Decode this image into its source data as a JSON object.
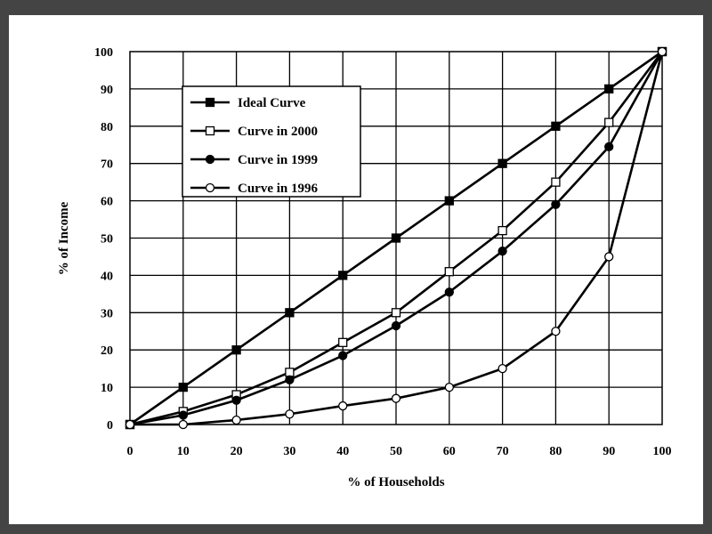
{
  "chart_data": {
    "type": "line",
    "title": "",
    "xlabel": "% of Households",
    "ylabel": "% of Income",
    "xlim": [
      0,
      100
    ],
    "ylim": [
      0,
      100
    ],
    "xticks": [
      0,
      10,
      20,
      30,
      40,
      50,
      60,
      70,
      80,
      90,
      100
    ],
    "yticks": [
      0,
      10,
      20,
      30,
      40,
      50,
      60,
      70,
      80,
      90,
      100
    ],
    "grid": true,
    "legend_position": "top-left",
    "x": [
      0,
      10,
      20,
      30,
      40,
      50,
      60,
      70,
      80,
      90,
      100
    ],
    "series": [
      {
        "name": "Ideal Curve",
        "marker": "filled-square",
        "values": [
          0,
          10,
          20,
          30,
          40,
          50,
          60,
          70,
          80,
          90,
          100
        ]
      },
      {
        "name": "Curve in 2000",
        "marker": "open-square",
        "values": [
          0,
          3.5,
          8,
          14,
          22,
          30,
          41,
          52,
          65,
          81,
          100
        ]
      },
      {
        "name": "Curve in 1999",
        "marker": "filled-circle",
        "values": [
          0,
          2.5,
          6.5,
          12,
          18.5,
          26.5,
          35.5,
          46.5,
          59,
          74.5,
          100
        ]
      },
      {
        "name": "Curve in 1996",
        "marker": "open-circle",
        "values": [
          0,
          0,
          1.2,
          2.8,
          5,
          7,
          10,
          15,
          25,
          45,
          100
        ]
      }
    ],
    "colors": {
      "frame": "#444444",
      "background": "#ffffff",
      "ink": "#000000"
    }
  }
}
